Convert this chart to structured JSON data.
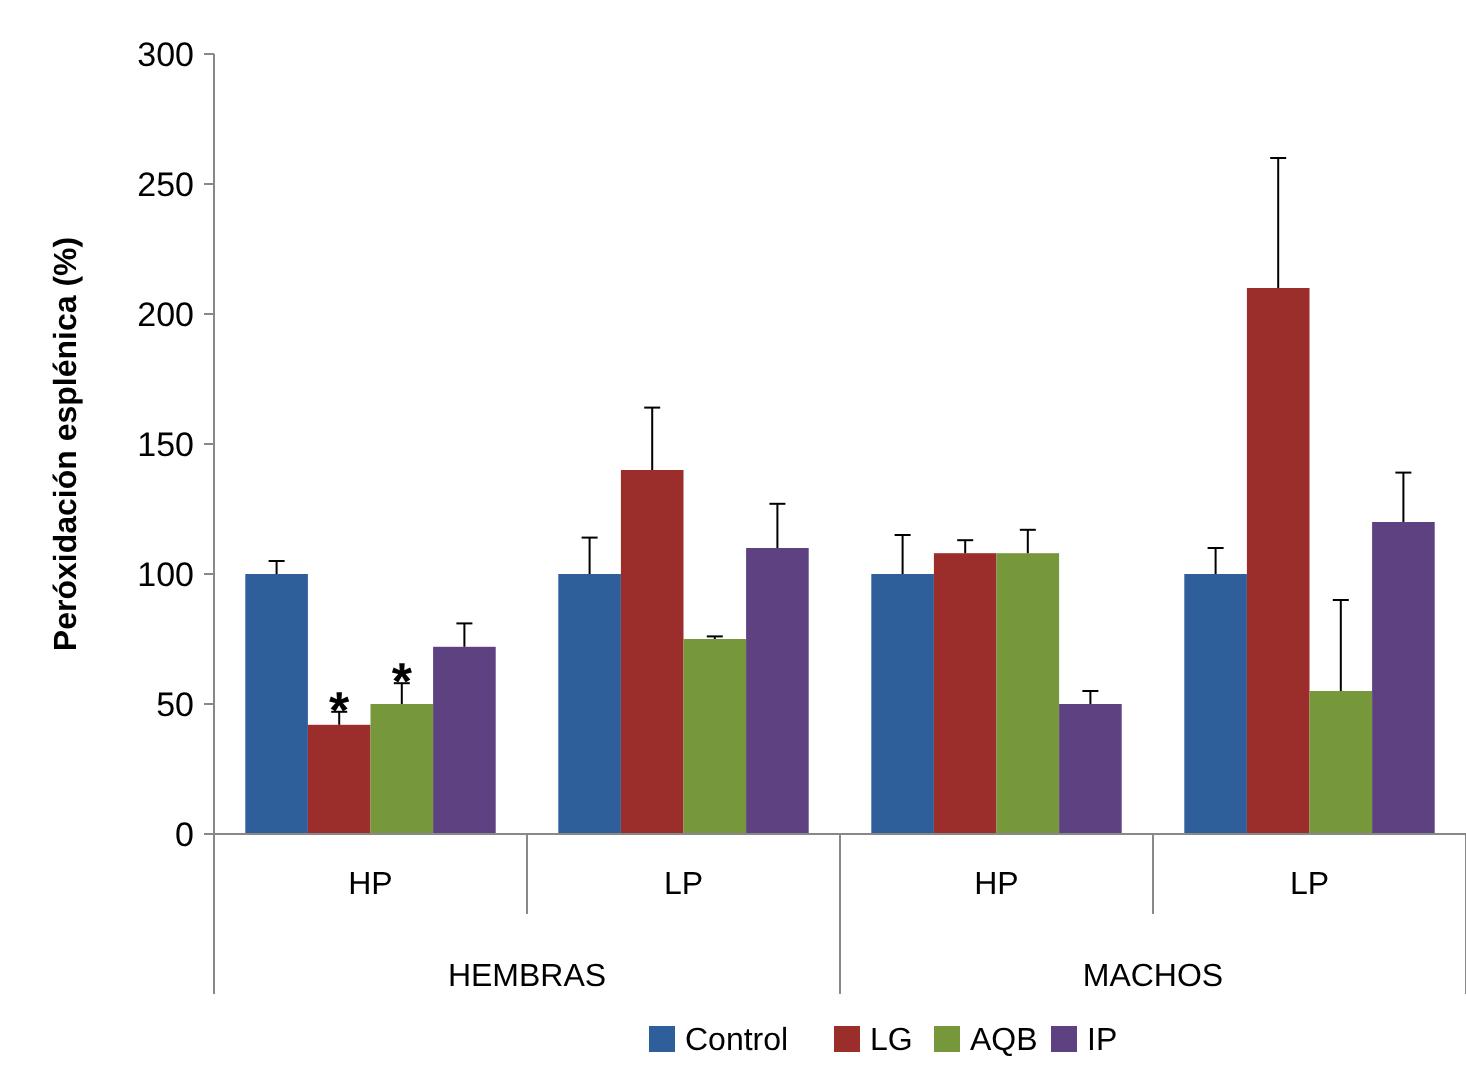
{
  "chart_data": {
    "type": "bar",
    "ylabel": "Peróxidación esplénica (%)",
    "categories": [
      "HP",
      "LP",
      "HP",
      "LP"
    ],
    "ylim": [
      0,
      300
    ],
    "yticks": [
      0,
      50,
      100,
      150,
      200,
      250,
      300
    ],
    "grid": false,
    "legend": "bottom",
    "annotations": [
      "HEMBRAS",
      "MACHOS"
    ],
    "series": [
      {
        "name": "Control",
        "color": "#2e5f9a",
        "values": [
          100,
          100,
          100,
          100
        ],
        "errors": [
          [
            100,
            105
          ],
          [
            100,
            114
          ],
          [
            100,
            115
          ],
          [
            100,
            110
          ]
        ]
      },
      {
        "name": "LG",
        "color": "#9b2d2a",
        "values": [
          42,
          140,
          108,
          210
        ],
        "errors": [
          [
            42,
            47
          ],
          [
            140,
            164
          ],
          [
            108,
            113
          ],
          [
            210,
            260
          ]
        ],
        "value_labels": [
          "*",
          null,
          null,
          null
        ]
      },
      {
        "name": "AQB",
        "color": "#77983a",
        "values": [
          50,
          75,
          108,
          55
        ],
        "errors": [
          [
            50,
            58
          ],
          [
            75,
            76
          ],
          [
            108,
            117
          ],
          [
            55,
            90
          ]
        ],
        "value_labels": [
          "*",
          null,
          null,
          null
        ]
      },
      {
        "name": "IP",
        "color": "#5e4180",
        "values": [
          72,
          110,
          50,
          120
        ],
        "errors": [
          [
            72,
            81
          ],
          [
            110,
            127
          ],
          [
            50,
            55
          ],
          [
            120,
            139
          ]
        ]
      }
    ]
  }
}
